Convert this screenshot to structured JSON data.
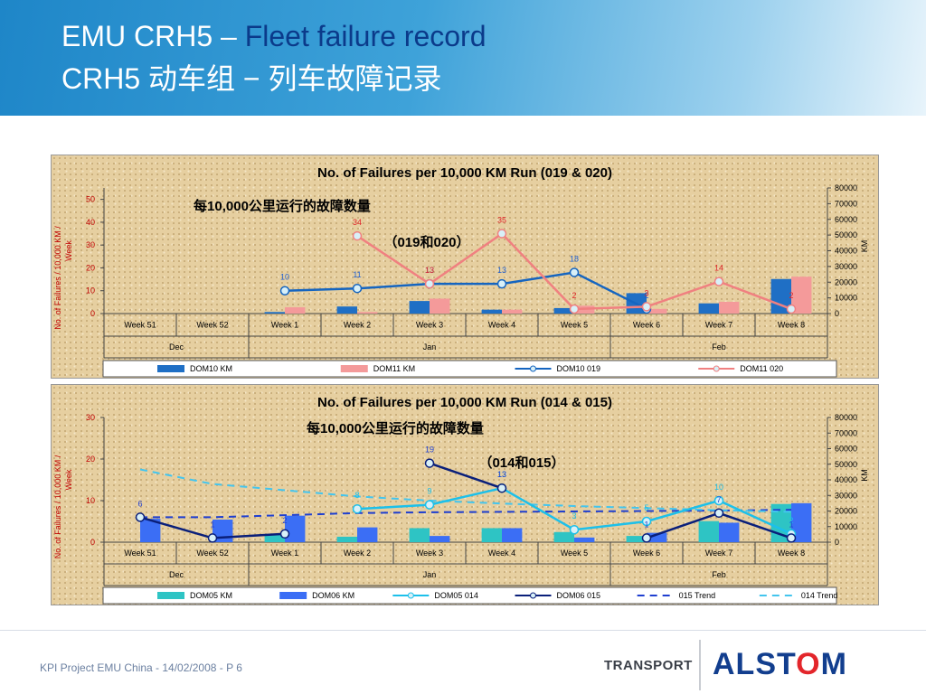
{
  "header": {
    "title_line1_prefix": "EMU CRH5 – ",
    "title_line1_highlight": "Fleet failure record",
    "title_line2": "CRH5 动车组 − 列车故障记录"
  },
  "footer": {
    "text": "KPI Project EMU China - 14/02/2008 - P 6",
    "transport": "TRANSPORT",
    "brand_pre": "ALST",
    "brand_o": "O",
    "brand_post": "M"
  },
  "chart_data": [
    {
      "type": "bar",
      "title": "No. of Failures per 10,000 KM Run (019 & 020)",
      "annotation_cn": "每10,000公里运行的故障数量",
      "annotation_ids": "（019和020）",
      "categories": [
        "Week 51",
        "Week 52",
        "Week 1",
        "Week 2",
        "Week 3",
        "Week 4",
        "Week 5",
        "Week 6",
        "Week 7",
        "Week 8"
      ],
      "months": [
        {
          "label": "Dec",
          "span": [
            0,
            1
          ]
        },
        {
          "label": "Jan",
          "span": [
            2,
            6
          ]
        },
        {
          "label": "Feb",
          "span": [
            7,
            9
          ]
        }
      ],
      "ylabel": "No. of Failures / 10,000 KM / Week",
      "y2label": "KM",
      "ylim": [
        0,
        55
      ],
      "y_ticks": [
        0,
        10,
        20,
        30,
        40,
        50
      ],
      "y2lim": [
        0,
        80000
      ],
      "y2_ticks": [
        0,
        10000,
        20000,
        30000,
        40000,
        50000,
        60000,
        70000,
        80000
      ],
      "bar_series": [
        {
          "name": "DOM10 KM",
          "color": "#1f6fc5",
          "values": [
            0,
            0,
            1000,
            4500,
            8000,
            2500,
            3500,
            13000,
            6500,
            22000
          ]
        },
        {
          "name": "DOM11 KM",
          "color": "#f49a9a",
          "values": [
            0,
            0,
            4000,
            1000,
            9500,
            2500,
            5000,
            3000,
            7500,
            23500
          ]
        }
      ],
      "line_series": [
        {
          "name": "DOM10 019",
          "color": "#1565c0",
          "label_color": "#1f5fd0",
          "values": [
            null,
            null,
            10,
            11,
            13,
            13,
            18,
            2,
            null,
            null
          ],
          "labels": [
            null,
            null,
            "10",
            "11",
            "13",
            "13",
            "18",
            "2",
            null,
            null
          ]
        },
        {
          "name": "DOM11 020",
          "color": "#f08080",
          "label_color": "#e0262b",
          "values": [
            null,
            null,
            null,
            34,
            13,
            35,
            2,
            3,
            14,
            2
          ],
          "labels": [
            null,
            null,
            null,
            "34",
            "13",
            "35",
            "2",
            "3",
            "14",
            "2"
          ]
        }
      ],
      "legend_position": "bottom"
    },
    {
      "type": "bar",
      "title": "No. of Failures per 10,000 KM Run (014 & 015)",
      "annotation_cn": "每10,000公里运行的故障数量",
      "annotation_ids": "（014和015）",
      "categories": [
        "Week 51",
        "Week 52",
        "Week 1",
        "Week 2",
        "Week 3",
        "Week 4",
        "Week 5",
        "Week 6",
        "Week 7",
        "Week 8"
      ],
      "months": [
        {
          "label": "Dec",
          "span": [
            0,
            1
          ]
        },
        {
          "label": "Jan",
          "span": [
            2,
            6
          ]
        },
        {
          "label": "Feb",
          "span": [
            7,
            9
          ]
        }
      ],
      "ylabel": "No. of Failures / 10,000 KM / Week",
      "y2label": "KM",
      "ylim": [
        0,
        30
      ],
      "y_ticks": [
        0,
        10,
        20,
        30
      ],
      "y2lim": [
        0,
        80000
      ],
      "y2_ticks": [
        0,
        10000,
        20000,
        30000,
        40000,
        50000,
        60000,
        70000,
        80000
      ],
      "bar_series": [
        {
          "name": "DOM05 KM",
          "color": "#2ec4c4",
          "values": [
            0,
            0,
            5000,
            3500,
            9000,
            9000,
            6500,
            4000,
            13500,
            24500
          ]
        },
        {
          "name": "DOM06 KM",
          "color": "#3b6ef5",
          "values": [
            15000,
            14500,
            17000,
            9500,
            4000,
            9000,
            3000,
            6000,
            12500,
            25000
          ]
        }
      ],
      "line_series": [
        {
          "name": "DOM05 014",
          "color": "#1cc0ea",
          "label_color": "#1cc0ea",
          "values": [
            null,
            null,
            null,
            8,
            9,
            13,
            3,
            5,
            10,
            2
          ],
          "labels": [
            null,
            null,
            null,
            "8",
            "9",
            "13",
            "3",
            "5",
            "10",
            "2"
          ]
        },
        {
          "name": "DOM06 015",
          "color": "#0a1f7a",
          "label_color": "#1f3fd0",
          "values": [
            6,
            1,
            2,
            null,
            19,
            13,
            null,
            1,
            7,
            1
          ],
          "labels": [
            "6",
            "1",
            "2",
            null,
            "19",
            "13",
            null,
            "1",
            "7",
            "1"
          ]
        }
      ],
      "trend_series": [
        {
          "name": "015 Trend",
          "color": "#1f3fd0",
          "values": [
            6,
            6,
            6.5,
            7,
            7.2,
            7.3,
            7.4,
            7.5,
            7.6,
            7.8
          ]
        },
        {
          "name": "014 Trend",
          "color": "#43c5ee",
          "values": [
            17.5,
            14,
            12.5,
            11,
            10,
            9.3,
            8.7,
            8.2,
            7.7,
            7.3
          ]
        }
      ],
      "legend_position": "bottom"
    }
  ]
}
